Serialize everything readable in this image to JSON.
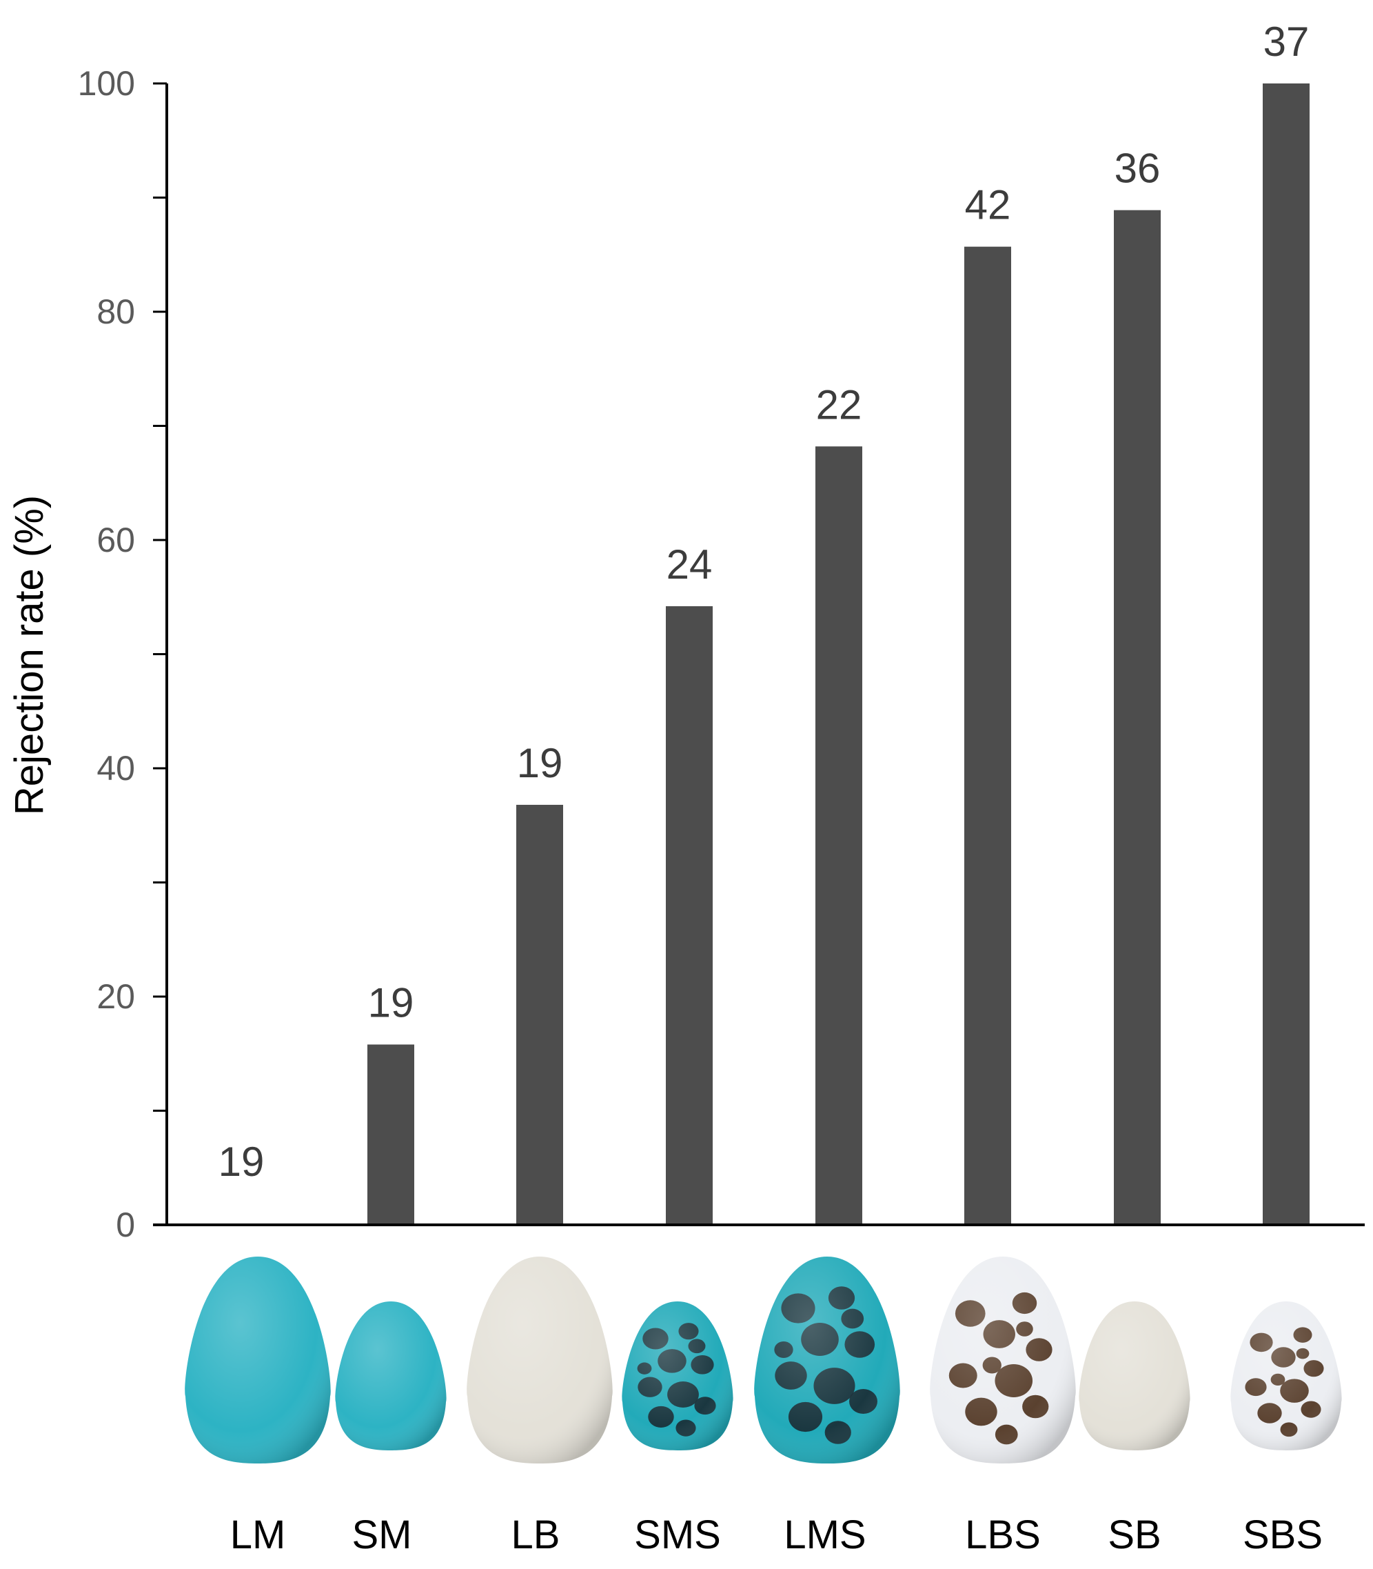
{
  "chart_data": {
    "type": "bar",
    "categories": [
      "LM",
      "SM",
      "LB",
      "SMS",
      "LMS",
      "LBS",
      "SB",
      "SBS"
    ],
    "values": [
      0,
      15.8,
      36.8,
      54.2,
      68.2,
      85.7,
      88.9,
      100
    ],
    "sample_sizes": [
      "19",
      "19",
      "19",
      "24",
      "22",
      "42",
      "36",
      "37"
    ],
    "ylabel": "Rejection rate (%)",
    "ylim": [
      0,
      100
    ],
    "yticks_major": [
      "0",
      "20",
      "40",
      "60",
      "80",
      "100"
    ],
    "yticks_minor": [
      10,
      30,
      50,
      70,
      90
    ],
    "grid": false,
    "colors": {
      "bar": "#4d4d4d",
      "axis": "#000000"
    },
    "eggs": [
      {
        "category": "LM",
        "size": "large",
        "base": "#2db3c4",
        "pattern": "none"
      },
      {
        "category": "SM",
        "size": "small",
        "base": "#2db3c4",
        "pattern": "none"
      },
      {
        "category": "LB",
        "size": "large",
        "base": "#e4e1d8",
        "pattern": "none"
      },
      {
        "category": "SMS",
        "size": "small",
        "base": "#22aab9",
        "pattern": "dark-blotches"
      },
      {
        "category": "LMS",
        "size": "large",
        "base": "#22aab9",
        "pattern": "dark-blotches"
      },
      {
        "category": "LBS",
        "size": "large",
        "base": "#eceef2",
        "pattern": "brown-blotches"
      },
      {
        "category": "SB",
        "size": "small",
        "base": "#e4e1d8",
        "pattern": "none"
      },
      {
        "category": "SBS",
        "size": "small",
        "base": "#eceef2",
        "pattern": "brown-blotches"
      }
    ]
  }
}
